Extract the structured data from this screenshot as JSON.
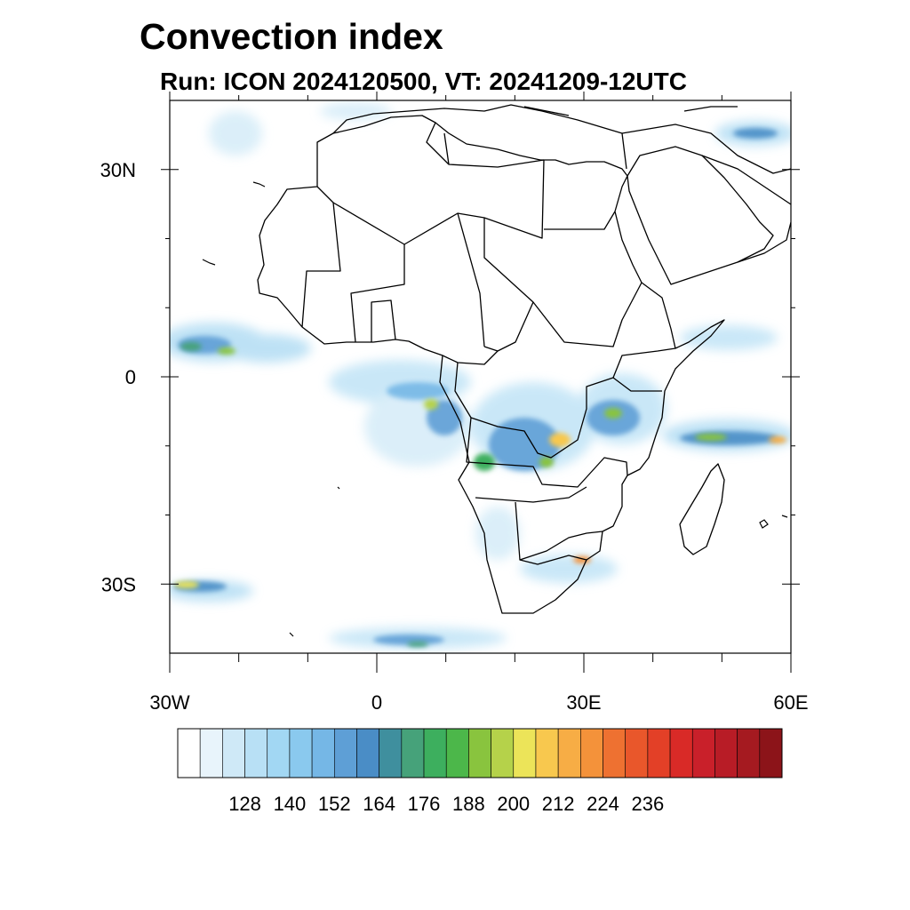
{
  "title": "Convection index",
  "subtitle": "Run: ICON 2024120500,  VT: 20241209-12UTC",
  "map": {
    "lon_range": [
      -30,
      60
    ],
    "lat_range": [
      -40,
      40
    ],
    "lat_tick_labels": [
      {
        "lat": 30,
        "label": "30N"
      },
      {
        "lat": 0,
        "label": "0"
      },
      {
        "lat": -30,
        "label": "30S"
      }
    ],
    "lon_tick_labels": [
      {
        "lon": -30,
        "label": "30W"
      },
      {
        "lon": 0,
        "label": "0"
      },
      {
        "lon": 30,
        "label": "30E"
      },
      {
        "lon": 60,
        "label": "60E"
      }
    ],
    "minor_lon_ticks": [
      -20,
      -10,
      10,
      20,
      40,
      50
    ],
    "minor_lat_ticks": [
      20,
      10,
      -10,
      -20
    ]
  },
  "colorbar": {
    "colors": [
      "#ffffff",
      "#e8f4fb",
      "#cfe9f7",
      "#b8e0f5",
      "#a2d7f3",
      "#8ac9ee",
      "#75b7e6",
      "#5e9fd6",
      "#4a8dc6",
      "#3f8f9e",
      "#46a27a",
      "#3daf5e",
      "#4cb74a",
      "#89c43e",
      "#b5d24a",
      "#ece459",
      "#f8c84e",
      "#f7ad45",
      "#f4923a",
      "#ee7131",
      "#e9572b",
      "#e34027",
      "#d92a27",
      "#c9202a",
      "#b81c26",
      "#a51a20",
      "#8c1419"
    ],
    "tick_labels": [
      "128",
      "140",
      "152",
      "164",
      "176",
      "188",
      "200",
      "212",
      "224",
      "236"
    ]
  }
}
